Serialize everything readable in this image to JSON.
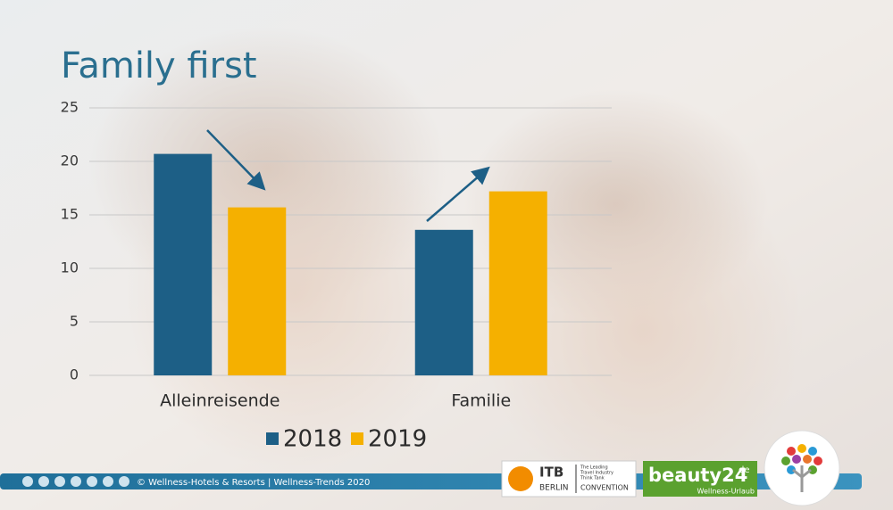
{
  "chart_data": {
    "type": "bar",
    "title": "Family first",
    "categories": [
      "Alleinreisende",
      "Familie"
    ],
    "series": [
      {
        "name": "2018",
        "color": "#1d5f86",
        "values": [
          20.7,
          13.6
        ]
      },
      {
        "name": "2019",
        "color": "#f5b000",
        "values": [
          15.7,
          17.2
        ]
      }
    ],
    "ylim": [
      0,
      25
    ],
    "yticks": [
      0,
      5,
      10,
      15,
      20,
      25
    ],
    "grid": true,
    "legend": "bottom"
  },
  "footer": {
    "copyright": "© Wellness-Hotels & Resorts | Wellness-Trends 2020",
    "itb": {
      "name": "ITB",
      "city": "BERLIN",
      "tagline": [
        "The Leading",
        "Travel Industry",
        "Think Tank"
      ],
      "event": "CONVENTION"
    },
    "beauty": {
      "brand": "beauty24",
      "tld": "de",
      "claim": "Wellness-Urlaub"
    }
  }
}
